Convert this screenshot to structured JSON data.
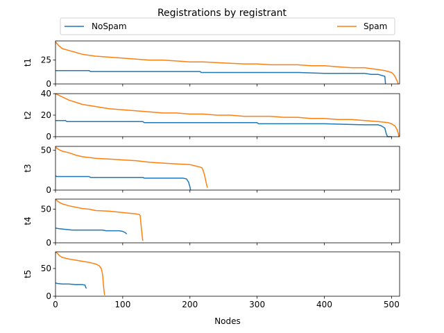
{
  "chart_data": {
    "type": "line",
    "title": "Registrations by registrant",
    "xlabel": "Nodes",
    "xlim": [
      0,
      512
    ],
    "x_ticks": [
      0,
      100,
      200,
      300,
      400,
      500
    ],
    "grid": false,
    "legend": {
      "placement": "top, spanning width (above subplots)"
    },
    "colors": {
      "NoSpam": "#1f77b4",
      "Spam": "#ff7f0e"
    },
    "subplots": [
      {
        "ylabel": "t1",
        "ylim": [
          0,
          45
        ],
        "y_ticks": [
          0,
          25
        ],
        "series": [
          {
            "name": "NoSpam",
            "points": [
              [
                0,
                14
              ],
              [
                50,
                14
              ],
              [
                52,
                13
              ],
              [
                215,
                13
              ],
              [
                217,
                12
              ],
              [
                360,
                12
              ],
              [
                362,
                12
              ],
              [
                400,
                11
              ],
              [
                420,
                11
              ],
              [
                460,
                11
              ],
              [
                470,
                10
              ],
              [
                480,
                10
              ],
              [
                490,
                8
              ],
              [
                491,
                0
              ]
            ]
          },
          {
            "name": "Spam",
            "points": [
              [
                0,
                44
              ],
              [
                5,
                40
              ],
              [
                10,
                37
              ],
              [
                20,
                35
              ],
              [
                30,
                33
              ],
              [
                40,
                31
              ],
              [
                60,
                29
              ],
              [
                80,
                28
              ],
              [
                100,
                27
              ],
              [
                120,
                26
              ],
              [
                140,
                25
              ],
              [
                160,
                25
              ],
              [
                180,
                24
              ],
              [
                200,
                23
              ],
              [
                220,
                23
              ],
              [
                250,
                22
              ],
              [
                280,
                21
              ],
              [
                300,
                21
              ],
              [
                320,
                20
              ],
              [
                340,
                20
              ],
              [
                360,
                20
              ],
              [
                380,
                19
              ],
              [
                400,
                19
              ],
              [
                420,
                18
              ],
              [
                440,
                17
              ],
              [
                460,
                17
              ],
              [
                470,
                16
              ],
              [
                480,
                15
              ],
              [
                490,
                14
              ],
              [
                495,
                13
              ],
              [
                500,
                12
              ],
              [
                503,
                10
              ],
              [
                505,
                8
              ],
              [
                507,
                5
              ],
              [
                509,
                2
              ],
              [
                510,
                0
              ]
            ]
          }
        ]
      },
      {
        "ylabel": "t2",
        "ylim": [
          0,
          40
        ],
        "y_ticks": [
          0,
          20,
          40
        ],
        "series": [
          {
            "name": "NoSpam",
            "points": [
              [
                0,
                15
              ],
              [
                15,
                15
              ],
              [
                17,
                14
              ],
              [
                130,
                14
              ],
              [
                132,
                13
              ],
              [
                300,
                13
              ],
              [
                302,
                12
              ],
              [
                400,
                12
              ],
              [
                460,
                11
              ],
              [
                480,
                11
              ],
              [
                485,
                10
              ],
              [
                490,
                8
              ],
              [
                492,
                3
              ],
              [
                494,
                0
              ],
              [
                500,
                0
              ]
            ]
          },
          {
            "name": "Spam",
            "points": [
              [
                0,
                40
              ],
              [
                10,
                37
              ],
              [
                20,
                34
              ],
              [
                30,
                32
              ],
              [
                40,
                30
              ],
              [
                60,
                28
              ],
              [
                80,
                26
              ],
              [
                100,
                25
              ],
              [
                120,
                24
              ],
              [
                140,
                23
              ],
              [
                160,
                22
              ],
              [
                180,
                22
              ],
              [
                200,
                21
              ],
              [
                220,
                21
              ],
              [
                240,
                20
              ],
              [
                260,
                20
              ],
              [
                280,
                19
              ],
              [
                300,
                19
              ],
              [
                320,
                19
              ],
              [
                340,
                18
              ],
              [
                360,
                18
              ],
              [
                380,
                17
              ],
              [
                400,
                17
              ],
              [
                420,
                16
              ],
              [
                440,
                16
              ],
              [
                460,
                15
              ],
              [
                480,
                14
              ],
              [
                495,
                13
              ],
              [
                500,
                12
              ],
              [
                505,
                10
              ],
              [
                508,
                7
              ],
              [
                510,
                3
              ],
              [
                511,
                0
              ]
            ]
          }
        ]
      },
      {
        "ylabel": "t3",
        "ylim": [
          0,
          55
        ],
        "y_ticks": [
          0,
          50
        ],
        "series": [
          {
            "name": "NoSpam",
            "points": [
              [
                0,
                18
              ],
              [
                2,
                17
              ],
              [
                50,
                17
              ],
              [
                52,
                16
              ],
              [
                130,
                16
              ],
              [
                132,
                15
              ],
              [
                190,
                15
              ],
              [
                195,
                14
              ],
              [
                198,
                10
              ],
              [
                200,
                4
              ],
              [
                201,
                0
              ]
            ]
          },
          {
            "name": "Spam",
            "points": [
              [
                0,
                54
              ],
              [
                5,
                51
              ],
              [
                10,
                49
              ],
              [
                20,
                47
              ],
              [
                30,
                44
              ],
              [
                40,
                42
              ],
              [
                60,
                40
              ],
              [
                80,
                39
              ],
              [
                100,
                38
              ],
              [
                120,
                37
              ],
              [
                140,
                35
              ],
              [
                160,
                34
              ],
              [
                180,
                33
              ],
              [
                200,
                32
              ],
              [
                210,
                30
              ],
              [
                215,
                29
              ],
              [
                218,
                28
              ],
              [
                220,
                24
              ],
              [
                222,
                18
              ],
              [
                224,
                10
              ],
              [
                226,
                3
              ]
            ]
          }
        ]
      },
      {
        "ylabel": "t4",
        "ylim": [
          0,
          65
        ],
        "y_ticks": [
          0,
          50
        ],
        "series": [
          {
            "name": "NoSpam",
            "points": [
              [
                0,
                22
              ],
              [
                5,
                21
              ],
              [
                15,
                20
              ],
              [
                25,
                19
              ],
              [
                70,
                19
              ],
              [
                75,
                18
              ],
              [
                95,
                18
              ],
              [
                100,
                17
              ],
              [
                104,
                15
              ],
              [
                106,
                13
              ]
            ]
          },
          {
            "name": "Spam",
            "points": [
              [
                0,
                65
              ],
              [
                3,
                62
              ],
              [
                6,
                60
              ],
              [
                10,
                58
              ],
              [
                20,
                55
              ],
              [
                30,
                53
              ],
              [
                40,
                51
              ],
              [
                50,
                50
              ],
              [
                60,
                48
              ],
              [
                80,
                47
              ],
              [
                100,
                45
              ],
              [
                110,
                44
              ],
              [
                120,
                43
              ],
              [
                125,
                42
              ],
              [
                126,
                40
              ],
              [
                127,
                30
              ],
              [
                128,
                20
              ],
              [
                129,
                10
              ],
              [
                130,
                3
              ]
            ]
          }
        ]
      },
      {
        "ylabel": "t5",
        "ylim": [
          0,
          80
        ],
        "y_ticks": [
          0,
          50
        ],
        "series": [
          {
            "name": "NoSpam",
            "points": [
              [
                0,
                24
              ],
              [
                3,
                23
              ],
              [
                10,
                22
              ],
              [
                20,
                22
              ],
              [
                30,
                21
              ],
              [
                40,
                21
              ],
              [
                44,
                20
              ],
              [
                45,
                16
              ],
              [
                46,
                14
              ]
            ]
          },
          {
            "name": "Spam",
            "points": [
              [
                0,
                80
              ],
              [
                3,
                77
              ],
              [
                6,
                73
              ],
              [
                10,
                70
              ],
              [
                20,
                67
              ],
              [
                30,
                65
              ],
              [
                40,
                63
              ],
              [
                50,
                61
              ],
              [
                60,
                58
              ],
              [
                65,
                55
              ],
              [
                68,
                50
              ],
              [
                70,
                40
              ],
              [
                71,
                25
              ],
              [
                72,
                12
              ],
              [
                73,
                2
              ]
            ]
          }
        ]
      }
    ]
  }
}
